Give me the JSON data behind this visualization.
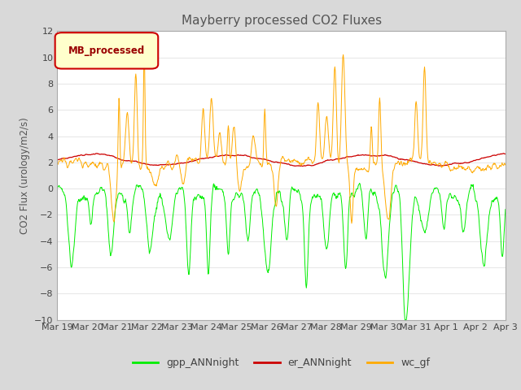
{
  "title": "Mayberry processed CO2 Fluxes",
  "ylabel": "CO2 Flux (urology/m2/s)",
  "xlabel": "",
  "ylim": [
    -10,
    12
  ],
  "yticks": [
    -10,
    -8,
    -6,
    -4,
    -2,
    0,
    2,
    4,
    6,
    8,
    10,
    12
  ],
  "xtick_labels": [
    "Mar 19",
    "Mar 20",
    "Mar 21",
    "Mar 22",
    "Mar 23",
    "Mar 24",
    "Mar 25",
    "Mar 26",
    "Mar 27",
    "Mar 28",
    "Mar 29",
    "Mar 30",
    "Mar 31",
    "Apr 1",
    "Apr 2",
    "Apr 3"
  ],
  "legend_label": "MB_processed",
  "line_labels": [
    "gpp_ANNnight",
    "er_ANNnight",
    "wc_gf"
  ],
  "line_colors": [
    "#00ee00",
    "#cc0000",
    "#ffaa00"
  ],
  "background_color": "#d9d9d9",
  "plot_bg_color": "#ffffff",
  "title_color": "#555555",
  "grid_color": "#e8e8e8",
  "n_points": 960,
  "days": 16,
  "seed": 7
}
